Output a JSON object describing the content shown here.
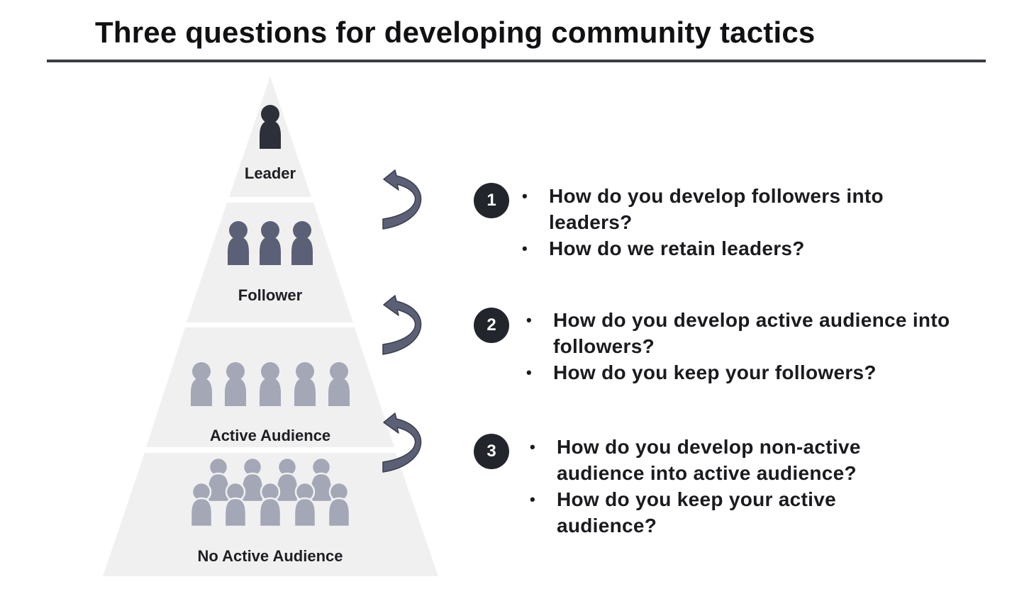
{
  "title": "Three questions for developing community tactics",
  "pyramid": {
    "tiers": [
      {
        "label": "Leader",
        "people": 1,
        "color": "#2d3039"
      },
      {
        "label": "Follower",
        "people": 3,
        "color": "#5b6076"
      },
      {
        "label": "Active Audience",
        "people": 5,
        "color": "#a4a7b6"
      },
      {
        "label": "No Active Audience",
        "people": 9,
        "color": "#a4a7b6"
      }
    ],
    "arrow_color": "#5b6076",
    "tier_fill": "#f0f0f0"
  },
  "questions": [
    {
      "number": "1",
      "items": [
        "How do you develop followers into leaders?",
        "How do we retain leaders?"
      ]
    },
    {
      "number": "2",
      "items": [
        "How do you develop active audience into followers?",
        "How do you keep your followers?"
      ]
    },
    {
      "number": "3",
      "items": [
        "How do you develop non-active audience into active audience?",
        "How do you keep your active audience?"
      ]
    }
  ]
}
